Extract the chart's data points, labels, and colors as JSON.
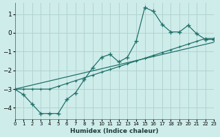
{
  "xlabel": "Humidex (Indice chaleur)",
  "background_color": "#ceecea",
  "grid_color": "#b0d4d0",
  "line_color": "#1e7068",
  "x_ticks": [
    0,
    1,
    2,
    3,
    4,
    5,
    6,
    7,
    8,
    9,
    10,
    11,
    12,
    13,
    14,
    15,
    16,
    17,
    18,
    19,
    20,
    21,
    22,
    23
  ],
  "y_ticks": [
    -4,
    -3,
    -2,
    -1,
    0,
    1
  ],
  "xlim": [
    0,
    23
  ],
  "ylim": [
    -4.6,
    1.6
  ],
  "curve1_x": [
    0,
    1,
    2,
    3,
    4,
    5,
    6,
    7,
    8,
    9,
    10,
    11,
    12,
    13,
    14,
    15,
    16,
    17,
    18,
    19,
    20,
    21,
    22,
    23
  ],
  "curve1_y": [
    -3.0,
    -3.3,
    -3.8,
    -4.3,
    -4.3,
    -4.3,
    -3.55,
    -3.2,
    -2.5,
    -1.85,
    -1.3,
    -1.15,
    -1.55,
    -1.3,
    -0.45,
    1.35,
    1.15,
    0.45,
    0.05,
    0.05,
    0.4,
    -0.05,
    -0.35,
    -0.35
  ],
  "curve2_x": [
    0,
    1,
    2,
    3,
    4,
    5,
    6,
    7,
    8,
    9,
    10,
    11,
    12,
    13,
    14,
    15,
    16,
    17,
    18,
    19,
    20,
    21,
    22,
    23
  ],
  "curve2_y": [
    -3.0,
    -3.0,
    -3.0,
    -3.0,
    -3.0,
    -2.85,
    -2.7,
    -2.55,
    -2.4,
    -2.25,
    -2.1,
    -1.95,
    -1.8,
    -1.65,
    -1.5,
    -1.35,
    -1.2,
    -1.05,
    -0.9,
    -0.75,
    -0.6,
    -0.45,
    -0.3,
    -0.3
  ],
  "curve3_x": [
    0,
    23
  ],
  "curve3_y": [
    -3.0,
    -0.5
  ]
}
